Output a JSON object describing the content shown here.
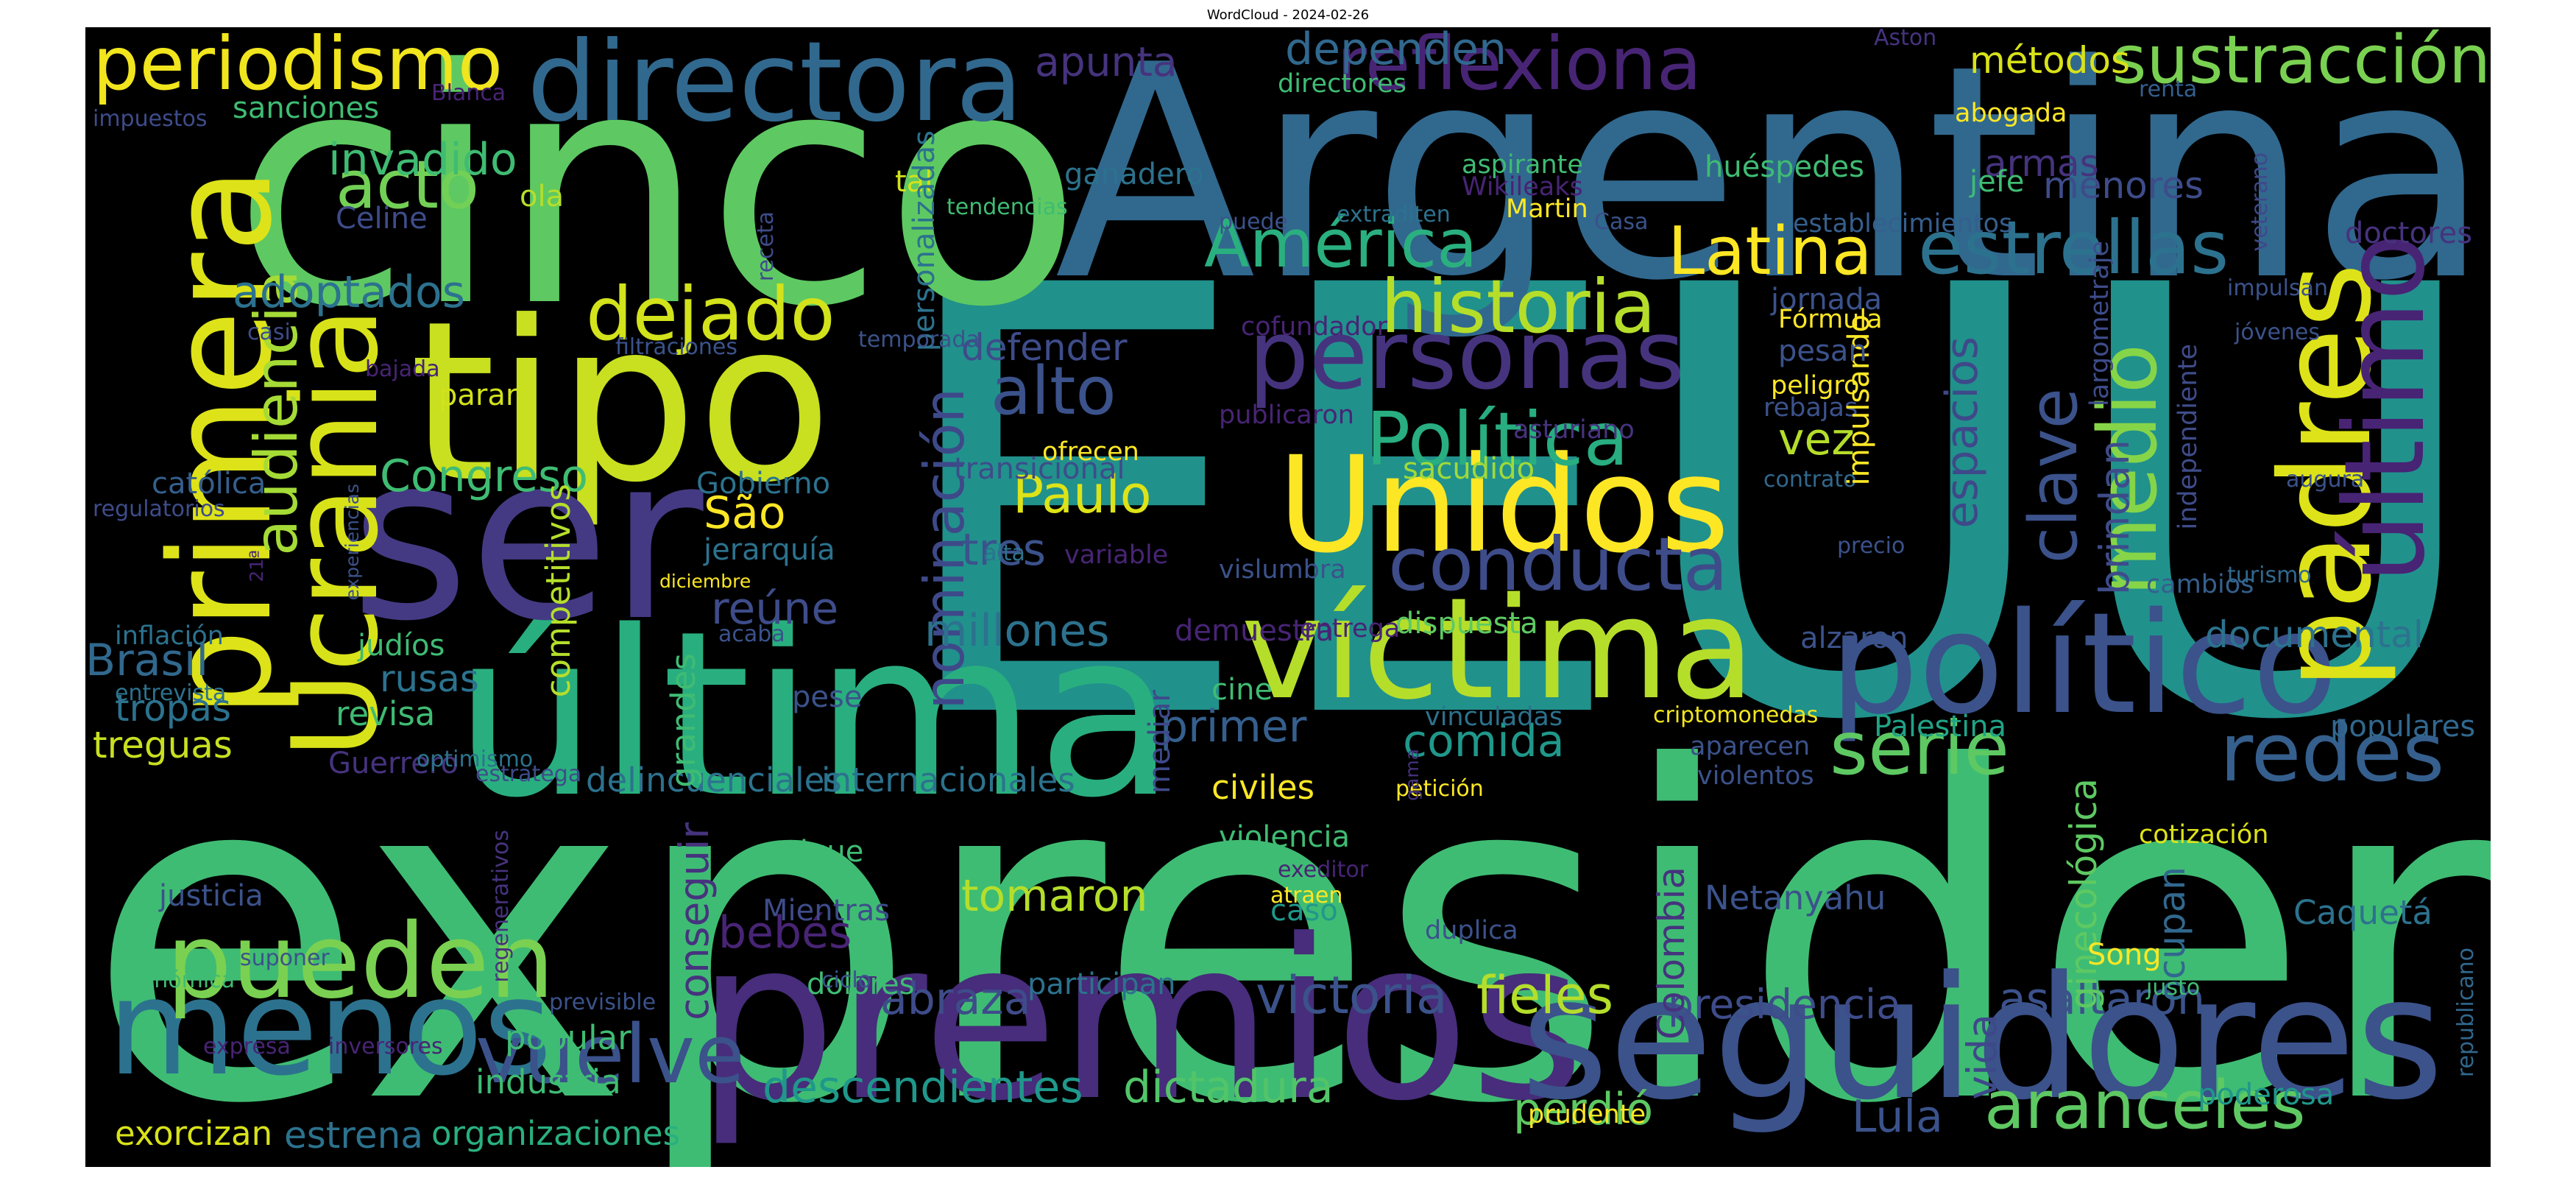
{
  "title": "WordCloud - 2024-02-26",
  "colormap": "viridis",
  "background_color": "#000000",
  "words": [
    {
      "text": "EEUU",
      "color": "#21918c"
    },
    {
      "text": "expresidente",
      "color": "#3fbc73"
    },
    {
      "text": "cinco",
      "color": "#5ec962"
    },
    {
      "text": "Argentina",
      "color": "#31688e"
    },
    {
      "text": "premios",
      "color": "#472d7b"
    },
    {
      "text": "seguidores",
      "color": "#3b528b"
    },
    {
      "text": "última",
      "color": "#29af7f"
    },
    {
      "text": "tipo",
      "color": "#c8e020"
    },
    {
      "text": "ser",
      "color": "#443a83"
    },
    {
      "text": "Unidos",
      "color": "#fde725"
    },
    {
      "text": "víctima",
      "color": "#b5de2b"
    },
    {
      "text": "político",
      "color": "#3b528b"
    },
    {
      "text": "primera",
      "color": "#dde318"
    },
    {
      "text": "Ucrania",
      "color": "#d8e219"
    },
    {
      "text": "padres",
      "color": "#dde318"
    },
    {
      "text": "último",
      "color": "#482475"
    },
    {
      "text": "directora",
      "color": "#31688e"
    },
    {
      "text": "personas",
      "color": "#46337e"
    },
    {
      "text": "menos",
      "color": "#2c728e"
    },
    {
      "text": "pueden",
      "color": "#7ad151"
    },
    {
      "text": "vuelve",
      "color": "#3b528b"
    },
    {
      "text": "reflexiona",
      "color": "#482475"
    },
    {
      "text": "periodismo",
      "color": "#f1e51d"
    },
    {
      "text": "sustracción",
      "color": "#7ad151"
    },
    {
      "text": "historia",
      "color": "#b5de2b"
    },
    {
      "text": "dejado",
      "color": "#d2e21b"
    },
    {
      "text": "conducta",
      "color": "#3e4c8a"
    },
    {
      "text": "redes",
      "color": "#355f8d"
    },
    {
      "text": "serie",
      "color": "#5ec962"
    },
    {
      "text": "estrellas",
      "color": "#2c728e"
    },
    {
      "text": "Latina",
      "color": "#fde725"
    },
    {
      "text": "América",
      "color": "#2ab07f"
    },
    {
      "text": "Política",
      "color": "#28ae80"
    },
    {
      "text": "alto",
      "color": "#3b528b"
    },
    {
      "text": "aranceles",
      "color": "#5ec962"
    },
    {
      "text": "audiencia",
      "color": "#a5db36"
    },
    {
      "text": "nominación",
      "color": "#3e4989"
    },
    {
      "text": "medio",
      "color": "#86d549"
    },
    {
      "text": "victoria",
      "color": "#3b528b"
    },
    {
      "text": "fieles",
      "color": "#b5de2b"
    },
    {
      "text": "abraza",
      "color": "#3e4c8a"
    },
    {
      "text": "descendientes",
      "color": "#1f988b"
    },
    {
      "text": "dictadura",
      "color": "#52c569"
    },
    {
      "text": "asaltaron",
      "color": "#3b528b"
    },
    {
      "text": "perdió",
      "color": "#5ec962"
    },
    {
      "text": "Lula",
      "color": "#3b528b"
    },
    {
      "text": "Paulo",
      "color": "#dde318"
    },
    {
      "text": "São",
      "color": "#fde725"
    },
    {
      "text": "tres",
      "color": "#3b528b"
    },
    {
      "text": "comida",
      "color": "#1f988b"
    },
    {
      "text": "primer",
      "color": "#355f8d"
    },
    {
      "text": "millones",
      "color": "#2c728e"
    },
    {
      "text": "Brasil",
      "color": "#31688e"
    },
    {
      "text": "tropas",
      "color": "#2c728e"
    },
    {
      "text": "treguas",
      "color": "#c8e020"
    },
    {
      "text": "rusas",
      "color": "#2c728e"
    },
    {
      "text": "acto",
      "color": "#73d056"
    },
    {
      "text": "invadido",
      "color": "#3fbc73"
    },
    {
      "text": "adoptados",
      "color": "#2c728e"
    },
    {
      "text": "Congreso",
      "color": "#3fbc73"
    },
    {
      "text": "apunta",
      "color": "#46337e"
    },
    {
      "text": "dependen",
      "color": "#31688e"
    },
    {
      "text": "documental",
      "color": "#2c728e"
    },
    {
      "text": "clave",
      "color": "#3b528b"
    },
    {
      "text": "brindan",
      "color": "#3e4c8a"
    },
    {
      "text": "espacios",
      "color": "#3e4989"
    },
    {
      "text": "vez",
      "color": "#b5de2b"
    },
    {
      "text": "defender",
      "color": "#3e4c8a"
    },
    {
      "text": "reúne",
      "color": "#3e4c8a"
    },
    {
      "text": "conseguir",
      "color": "#46337e"
    },
    {
      "text": "bebés",
      "color": "#482475"
    },
    {
      "text": "tomaron",
      "color": "#b5de2b"
    },
    {
      "text": "civiles",
      "color": "#fde725"
    },
    {
      "text": "presidencia",
      "color": "#3e4c8a"
    },
    {
      "text": "vida",
      "color": "#3e4989"
    },
    {
      "text": "Netanyahu",
      "color": "#3b528b"
    },
    {
      "text": "Caquetá",
      "color": "#2c728e"
    },
    {
      "text": "poderosa",
      "color": "#1f988b"
    },
    {
      "text": "Palestina",
      "color": "#20a386"
    },
    {
      "text": "populares",
      "color": "#31688e"
    },
    {
      "text": "doctores",
      "color": "#46337e"
    },
    {
      "text": "armas",
      "color": "#46337e"
    },
    {
      "text": "menores",
      "color": "#3e4c8a"
    },
    {
      "text": "métodos",
      "color": "#d8e219"
    },
    {
      "text": "sacudido",
      "color": "#a0da39"
    },
    {
      "text": "dispuesta",
      "color": "#5ec962"
    },
    {
      "text": "alzaron",
      "color": "#3b528b"
    },
    {
      "text": "violencia",
      "color": "#3fbc73"
    },
    {
      "text": "caso",
      "color": "#1f988b"
    },
    {
      "text": "organizaciones",
      "color": "#2ab07f"
    },
    {
      "text": "estrena",
      "color": "#2c728e"
    },
    {
      "text": "exorcizan",
      "color": "#d8e219"
    },
    {
      "text": "industria",
      "color": "#3fbc73"
    },
    {
      "text": "popular",
      "color": "#3fbc73"
    },
    {
      "text": "justicia",
      "color": "#3b528b"
    },
    {
      "text": "delincuenciales",
      "color": "#2c728e"
    },
    {
      "text": "internacionales",
      "color": "#2c728e"
    },
    {
      "text": "competitivos",
      "color": "#b5de2b"
    },
    {
      "text": "grandes",
      "color": "#3fbc73"
    },
    {
      "text": "judíos",
      "color": "#3fbc73"
    },
    {
      "text": "revisa",
      "color": "#3fbc73"
    },
    {
      "text": "jerarquía",
      "color": "#2c728e"
    },
    {
      "text": "Gobierno",
      "color": "#2c728e"
    },
    {
      "text": "transicional",
      "color": "#3e4c8a"
    },
    {
      "text": "parar",
      "color": "#d2e21b"
    },
    {
      "text": "ola",
      "color": "#b5de2b"
    },
    {
      "text": "tal",
      "color": "#d2e21b"
    },
    {
      "text": "ganadero",
      "color": "#2c728e"
    },
    {
      "text": "Celine",
      "color": "#3e4c8a"
    },
    {
      "text": "sanciones",
      "color": "#3fbc73"
    },
    {
      "text": "católica",
      "color": "#355f8d"
    },
    {
      "text": "inflación",
      "color": "#2c728e"
    },
    {
      "text": "entrevista",
      "color": "#2c728e"
    },
    {
      "text": "Guerrero",
      "color": "#46337e"
    },
    {
      "text": "optimismo",
      "color": "#2c728e"
    },
    {
      "text": "diciembre",
      "color": "#fde725"
    },
    {
      "text": "pese",
      "color": "#3b528b"
    },
    {
      "text": "vinculadas",
      "color": "#2c728e"
    },
    {
      "text": "criptomonedas",
      "color": "#f1e51d"
    },
    {
      "text": "aparecen",
      "color": "#3b528b"
    },
    {
      "text": "violentos",
      "color": "#3b528b"
    },
    {
      "text": "cotización",
      "color": "#dde318"
    },
    {
      "text": "ocupan",
      "color": "#31688e"
    },
    {
      "text": "ginecológica",
      "color": "#5ec962"
    },
    {
      "text": "Song",
      "color": "#fde725"
    },
    {
      "text": "justo",
      "color": "#3fbc73"
    },
    {
      "text": "republicano",
      "color": "#31688e"
    },
    {
      "text": "Colombia",
      "color": "#46337e"
    },
    {
      "text": "sigue",
      "color": "#3fbc73"
    },
    {
      "text": "Mientras",
      "color": "#3e4c8a"
    },
    {
      "text": "participan",
      "color": "#2c728e"
    },
    {
      "text": "dolores",
      "color": "#3fbc73"
    },
    {
      "text": "ciclo",
      "color": "#3b528b"
    },
    {
      "text": "duplica",
      "color": "#3b528b"
    },
    {
      "text": "atraen",
      "color": "#fde725"
    },
    {
      "text": "exeditor",
      "color": "#482475"
    },
    {
      "text": "petición",
      "color": "#fde725"
    },
    {
      "text": "gama",
      "color": "#46337e"
    },
    {
      "text": "mediar",
      "color": "#3e4989"
    },
    {
      "text": "cine",
      "color": "#3fbc73"
    },
    {
      "text": "demuestra",
      "color": "#482475"
    },
    {
      "text": "entrega",
      "color": "#482475"
    },
    {
      "text": "vislumbra",
      "color": "#3b528b"
    },
    {
      "text": "variable",
      "color": "#482475"
    },
    {
      "text": "alta",
      "color": "#2c728e"
    },
    {
      "text": "ofrecen",
      "color": "#fde725"
    },
    {
      "text": "publicaron",
      "color": "#482475"
    },
    {
      "text": "asturiano",
      "color": "#46337e"
    },
    {
      "text": "rebajas",
      "color": "#3b528b"
    },
    {
      "text": "peligro",
      "color": "#fde725"
    },
    {
      "text": "contrato",
      "color": "#31688e"
    },
    {
      "text": "precio",
      "color": "#3b528b"
    },
    {
      "text": "impulsando",
      "color": "#fde725"
    },
    {
      "text": "largometraje",
      "color": "#3e4c8a"
    },
    {
      "text": "independiente",
      "color": "#3e4c8a"
    },
    {
      "text": "cambios",
      "color": "#355f8d"
    },
    {
      "text": "turismo",
      "color": "#31688e"
    },
    {
      "text": "augura",
      "color": "#3b528b"
    },
    {
      "text": "jóvenes",
      "color": "#3b528b"
    },
    {
      "text": "impulsan",
      "color": "#3b528b"
    },
    {
      "text": "jornada",
      "color": "#3b528b"
    },
    {
      "text": "Fórmula",
      "color": "#fde725"
    },
    {
      "text": "pesan",
      "color": "#3b528b"
    },
    {
      "text": "cofundador",
      "color": "#482475"
    },
    {
      "text": "establecimientos",
      "color": "#355f8d"
    },
    {
      "text": "jefe",
      "color": "#3fbc73"
    },
    {
      "text": "huéspedes",
      "color": "#3fbc73"
    },
    {
      "text": "Casa",
      "color": "#3b528b"
    },
    {
      "text": "abogada",
      "color": "#fde725"
    },
    {
      "text": "renta",
      "color": "#355f8d"
    },
    {
      "text": "veterano",
      "color": "#3e4989"
    },
    {
      "text": "Aston",
      "color": "#46337e"
    },
    {
      "text": "Martin",
      "color": "#fde725"
    },
    {
      "text": "Wikileaks",
      "color": "#482475"
    },
    {
      "text": "aspirante",
      "color": "#3fbc73"
    },
    {
      "text": "directores",
      "color": "#3fbc73"
    },
    {
      "text": "puede",
      "color": "#3b528b"
    },
    {
      "text": "extraditen",
      "color": "#2c728e"
    },
    {
      "text": "tendencias",
      "color": "#3fbc73"
    },
    {
      "text": "personalizadas",
      "color": "#2c728e"
    },
    {
      "text": "receta",
      "color": "#3e4c8a"
    },
    {
      "text": "temporada",
      "color": "#3b528b"
    },
    {
      "text": "filtraciones",
      "color": "#3b528b"
    },
    {
      "text": "casi",
      "color": "#3e4c8a"
    },
    {
      "text": "bajada",
      "color": "#482475"
    },
    {
      "text": "Blanca",
      "color": "#482475"
    },
    {
      "text": "impuestos",
      "color": "#3e4c8a"
    },
    {
      "text": "regulatorios",
      "color": "#3e4c8a"
    },
    {
      "text": "21ª",
      "color": "#482475"
    },
    {
      "text": "experiencias",
      "color": "#3b528b"
    },
    {
      "text": "acaba",
      "color": "#3b528b"
    },
    {
      "text": "estratega",
      "color": "#3e4c8a"
    },
    {
      "text": "regenerativos",
      "color": "#46337e"
    },
    {
      "text": "económica",
      "color": "#3fbc73"
    },
    {
      "text": "suponer",
      "color": "#3b528b"
    },
    {
      "text": "previsible",
      "color": "#3b528b"
    },
    {
      "text": "expresa",
      "color": "#482475"
    },
    {
      "text": "inversores",
      "color": "#482475"
    },
    {
      "text": "prudente",
      "color": "#fde725"
    }
  ]
}
